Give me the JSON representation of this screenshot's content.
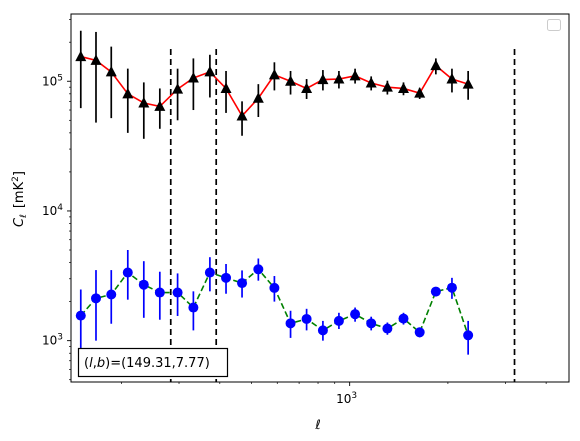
{
  "chart_data": {
    "type": "line",
    "xscale": "log",
    "yscale": "log",
    "xlim": [
      140,
      4700
    ],
    "ylim": [
      480,
      330000
    ],
    "xlabel": "ℓ",
    "ylabel_main": "C",
    "ylabel_sub": "ℓ",
    "ylabel_unit": "[mK",
    "ylabel_unit_sup": "2",
    "ylabel_unit_close": "]",
    "x_tick_labels": [
      {
        "value": 1000,
        "base": "10",
        "exp": "3"
      }
    ],
    "y_tick_labels": [
      {
        "value": 1000,
        "base": "10",
        "exp": "3"
      },
      {
        "value": 10000,
        "base": "10",
        "exp": "4"
      },
      {
        "value": 100000,
        "base": "10",
        "exp": "5"
      }
    ],
    "annotation": "(l,b)=(149.31,7.77)",
    "annotation_parts": {
      "open": "(",
      "l": "l",
      "comma": ",",
      "b": "b",
      "close": ")",
      "value": "=(149.31,7.77)"
    },
    "legend": {
      "position": "top-right",
      "entries": []
    },
    "vlines": [
      283,
      390,
      3200
    ],
    "series": [
      {
        "marker": "triangle",
        "line_color": "#ff0000",
        "marker_color": "#000000",
        "errorbar_color": "#000000",
        "line_style": "solid",
        "points": [
          {
            "x": 150,
            "y": 155000,
            "lo": 62000,
            "hi": 245000
          },
          {
            "x": 167,
            "y": 145000,
            "lo": 48000,
            "hi": 240000
          },
          {
            "x": 186,
            "y": 118000,
            "lo": 52000,
            "hi": 185000
          },
          {
            "x": 209,
            "y": 80000,
            "lo": 40000,
            "hi": 125000
          },
          {
            "x": 234,
            "y": 68000,
            "lo": 36000,
            "hi": 98000
          },
          {
            "x": 262,
            "y": 64000,
            "lo": 43000,
            "hi": 88000
          },
          {
            "x": 297,
            "y": 87000,
            "lo": 50000,
            "hi": 125000
          },
          {
            "x": 332,
            "y": 106000,
            "lo": 60000,
            "hi": 150000
          },
          {
            "x": 373,
            "y": 118000,
            "lo": 75000,
            "hi": 160000
          },
          {
            "x": 418,
            "y": 88000,
            "lo": 57000,
            "hi": 120000
          },
          {
            "x": 468,
            "y": 54000,
            "lo": 38000,
            "hi": 70000
          },
          {
            "x": 525,
            "y": 74000,
            "lo": 53000,
            "hi": 95000
          },
          {
            "x": 588,
            "y": 112000,
            "lo": 85000,
            "hi": 140000
          },
          {
            "x": 659,
            "y": 100000,
            "lo": 79000,
            "hi": 120000
          },
          {
            "x": 738,
            "y": 88000,
            "lo": 73000,
            "hi": 104000
          },
          {
            "x": 828,
            "y": 103000,
            "lo": 85000,
            "hi": 122000
          },
          {
            "x": 927,
            "y": 104000,
            "lo": 88000,
            "hi": 120000
          },
          {
            "x": 1039,
            "y": 110000,
            "lo": 96000,
            "hi": 125000
          },
          {
            "x": 1164,
            "y": 97000,
            "lo": 85000,
            "hi": 109000
          },
          {
            "x": 1305,
            "y": 90000,
            "lo": 79000,
            "hi": 101000
          },
          {
            "x": 1462,
            "y": 88000,
            "lo": 78000,
            "hi": 98000
          },
          {
            "x": 1639,
            "y": 81000,
            "lo": 73000,
            "hi": 89000
          },
          {
            "x": 1837,
            "y": 132000,
            "lo": 113000,
            "hi": 150000
          },
          {
            "x": 2058,
            "y": 104000,
            "lo": 82000,
            "hi": 125000
          },
          {
            "x": 2307,
            "y": 95000,
            "lo": 72000,
            "hi": 120000
          }
        ]
      },
      {
        "marker": "circle",
        "line_color": "#008000",
        "marker_color": "#0000ff",
        "errorbar_color": "#0000ff",
        "line_style": "dashed",
        "points": [
          {
            "x": 150,
            "y": 1560,
            "lo": 780,
            "hi": 2480
          },
          {
            "x": 167,
            "y": 2120,
            "lo": 1000,
            "hi": 3500
          },
          {
            "x": 186,
            "y": 2270,
            "lo": 1350,
            "hi": 3500
          },
          {
            "x": 209,
            "y": 3350,
            "lo": 2070,
            "hi": 5000
          },
          {
            "x": 234,
            "y": 2700,
            "lo": 1500,
            "hi": 4100
          },
          {
            "x": 262,
            "y": 2350,
            "lo": 1450,
            "hi": 3400
          },
          {
            "x": 297,
            "y": 2350,
            "lo": 1550,
            "hi": 3300
          },
          {
            "x": 332,
            "y": 1800,
            "lo": 1200,
            "hi": 2400
          },
          {
            "x": 373,
            "y": 3350,
            "lo": 2400,
            "hi": 4400
          },
          {
            "x": 418,
            "y": 3050,
            "lo": 2300,
            "hi": 3900
          },
          {
            "x": 468,
            "y": 2780,
            "lo": 2150,
            "hi": 3480
          },
          {
            "x": 525,
            "y": 3550,
            "lo": 2900,
            "hi": 4300
          },
          {
            "x": 588,
            "y": 2550,
            "lo": 2000,
            "hi": 3150
          },
          {
            "x": 659,
            "y": 1360,
            "lo": 1050,
            "hi": 1700
          },
          {
            "x": 738,
            "y": 1470,
            "lo": 1200,
            "hi": 1760
          },
          {
            "x": 828,
            "y": 1200,
            "lo": 1000,
            "hi": 1420
          },
          {
            "x": 927,
            "y": 1420,
            "lo": 1230,
            "hi": 1640
          },
          {
            "x": 1039,
            "y": 1600,
            "lo": 1400,
            "hi": 1800
          },
          {
            "x": 1164,
            "y": 1360,
            "lo": 1200,
            "hi": 1530
          },
          {
            "x": 1305,
            "y": 1240,
            "lo": 1110,
            "hi": 1380
          },
          {
            "x": 1462,
            "y": 1480,
            "lo": 1330,
            "hi": 1640
          },
          {
            "x": 1639,
            "y": 1160,
            "lo": 1060,
            "hi": 1260
          },
          {
            "x": 1837,
            "y": 2390,
            "lo": 2200,
            "hi": 2580
          },
          {
            "x": 2058,
            "y": 2560,
            "lo": 2100,
            "hi": 3050
          },
          {
            "x": 2307,
            "y": 1100,
            "lo": 780,
            "hi": 1420
          }
        ]
      }
    ]
  }
}
